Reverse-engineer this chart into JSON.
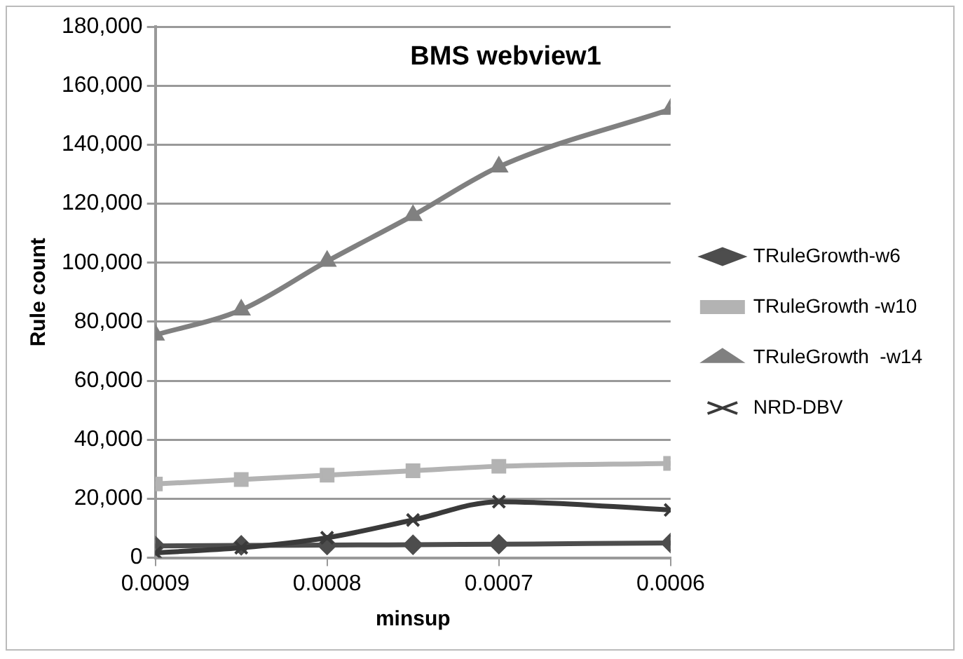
{
  "chart_data": {
    "type": "line",
    "title": "BMS webview1",
    "xlabel": "minsup",
    "ylabel": "Rule count",
    "x": [
      0.0009,
      0.00085,
      0.0008,
      0.00075,
      0.0007,
      0.0006
    ],
    "xlim": [
      0.0009,
      0.0006
    ],
    "xticks": [
      0.0009,
      0.0008,
      0.0007,
      0.0006
    ],
    "ylim": [
      0,
      180000
    ],
    "yticks": [
      {
        "value": 0,
        "label": "0"
      },
      {
        "value": 20000,
        "label": "20,000"
      },
      {
        "value": 40000,
        "label": "40,000"
      },
      {
        "value": 60000,
        "label": "60,000"
      },
      {
        "value": 80000,
        "label": "80,000"
      },
      {
        "value": 100000,
        "label": "100,000"
      },
      {
        "value": 120000,
        "label": "120,000"
      },
      {
        "value": 140000,
        "label": "140,000"
      },
      {
        "value": 160000,
        "label": "160,000"
      },
      {
        "value": 180000,
        "label": "180,000"
      }
    ],
    "series": [
      {
        "name": "TRuleGrowth-w6",
        "color": "#4d4d4d",
        "marker": "diamond",
        "values": [
          4000,
          4200,
          4300,
          4400,
          4600,
          5000
        ]
      },
      {
        "name": "TRuleGrowth -w10",
        "color": "#b3b3b3",
        "marker": "square",
        "values": [
          25000,
          26500,
          28000,
          29500,
          31000,
          32000
        ]
      },
      {
        "name": "TRuleGrowth  -w14",
        "color": "#808080",
        "marker": "triangle",
        "values": [
          75500,
          84000,
          100500,
          116000,
          132500,
          152000
        ]
      },
      {
        "name": "NRD-DBV",
        "color": "#3a3a3a",
        "marker": "cross",
        "values": [
          1700,
          3400,
          6800,
          12800,
          19000,
          16200
        ]
      }
    ],
    "grid": "y",
    "legend": "right"
  }
}
